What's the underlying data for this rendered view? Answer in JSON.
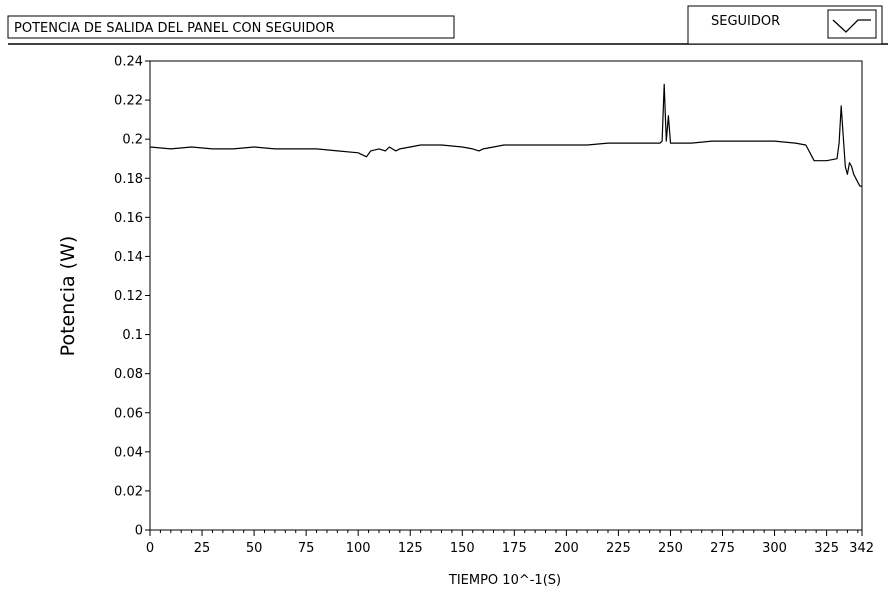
{
  "chart_data": {
    "type": "line",
    "title": "POTENCIA DE SALIDA DEL PANEL CON SEGUIDOR",
    "xlabel": "TIEMPO 10^-1(S)",
    "ylabel": "Potencia (W)",
    "xlim": [
      0,
      342
    ],
    "ylim": [
      0,
      0.24
    ],
    "x_ticks": [
      "0",
      "25",
      "50",
      "75",
      "100",
      "125",
      "150",
      "175",
      "200",
      "225",
      "250",
      "275",
      "300",
      "325",
      "342"
    ],
    "y_ticks": [
      "0",
      "0.02",
      "0.04",
      "0.06",
      "0.08",
      "0.1",
      "0.12",
      "0.14",
      "0.16",
      "0.18",
      "0.2",
      "0.22",
      "0.24"
    ],
    "grid": false,
    "legend_position": "top-right",
    "series": [
      {
        "name": "SEGUIDOR",
        "color": "#000000",
        "x": [
          0,
          10,
          20,
          30,
          40,
          50,
          60,
          70,
          80,
          90,
          100,
          102,
          104,
          106,
          110,
          113,
          115,
          118,
          120,
          125,
          130,
          140,
          150,
          155,
          158,
          160,
          165,
          170,
          180,
          190,
          200,
          210,
          220,
          230,
          240,
          245,
          246,
          247,
          248,
          249,
          250,
          255,
          260,
          270,
          280,
          290,
          300,
          310,
          315,
          317,
          319,
          320,
          325,
          330,
          331,
          332,
          333,
          334,
          335,
          336,
          337,
          338,
          339,
          340,
          341,
          342
        ],
        "y": [
          0.196,
          0.195,
          0.196,
          0.195,
          0.195,
          0.196,
          0.195,
          0.195,
          0.195,
          0.194,
          0.193,
          0.192,
          0.191,
          0.194,
          0.195,
          0.194,
          0.196,
          0.194,
          0.195,
          0.196,
          0.197,
          0.197,
          0.196,
          0.195,
          0.194,
          0.195,
          0.196,
          0.197,
          0.197,
          0.197,
          0.197,
          0.197,
          0.198,
          0.198,
          0.198,
          0.198,
          0.199,
          0.228,
          0.199,
          0.212,
          0.198,
          0.198,
          0.198,
          0.199,
          0.199,
          0.199,
          0.199,
          0.198,
          0.197,
          0.193,
          0.189,
          0.189,
          0.189,
          0.19,
          0.198,
          0.217,
          0.201,
          0.186,
          0.182,
          0.188,
          0.186,
          0.182,
          0.18,
          0.178,
          0.176,
          0.176
        ]
      }
    ]
  }
}
